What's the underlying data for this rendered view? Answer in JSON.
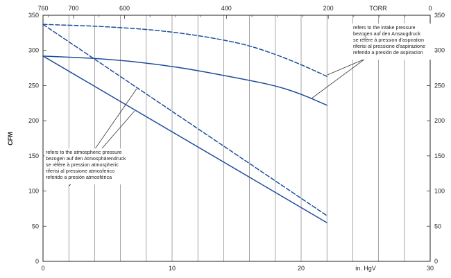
{
  "chart_data": {
    "type": "line",
    "ylabel": "CFM",
    "x_bottom": {
      "unit": "in. HgV",
      "ticks": [
        0,
        10,
        20,
        30
      ],
      "range": [
        0,
        30
      ]
    },
    "x_top": {
      "unit": "TORR",
      "ticks": [
        760,
        700,
        600,
        400,
        200,
        0
      ],
      "range": [
        760,
        0
      ]
    },
    "y": {
      "ticks": [
        0,
        50,
        100,
        150,
        200,
        250,
        300,
        350
      ],
      "range": [
        0,
        350
      ]
    },
    "grid": true,
    "series": [
      {
        "style": "dashed",
        "color": "#1f4e9c",
        "x": [
          0,
          5,
          10,
          15,
          17.5,
          20,
          22
        ],
        "y": [
          337,
          334,
          327,
          312,
          298,
          280,
          263
        ]
      },
      {
        "style": "solid",
        "color": "#1f4e9c",
        "x": [
          0,
          5,
          10,
          15,
          18,
          20,
          22
        ],
        "y": [
          292,
          288,
          278,
          261,
          250,
          238,
          222
        ]
      },
      {
        "style": "dashed",
        "color": "#1f4e9c",
        "x": [
          0,
          22
        ],
        "y": [
          337,
          65
        ]
      },
      {
        "style": "solid",
        "color": "#1f4e9c",
        "x": [
          0,
          22
        ],
        "y": [
          292,
          55
        ]
      }
    ],
    "annotations": {
      "intake": [
        "refers to the intake pressure",
        "bezogen auf den Ansaugdruck",
        "se réfère à pression d'aspiration",
        "riferisi al pressione d'aspirazione",
        "referido a presión de aspiracion"
      ],
      "atmospheric": [
        "refers to the atmospheric pressure",
        "bezogen auf den Atmosphärendruck",
        "se réfère à pression atmospheric",
        "riferisi al pressione atmosferico",
        "referido a presión atmosférica"
      ]
    }
  }
}
